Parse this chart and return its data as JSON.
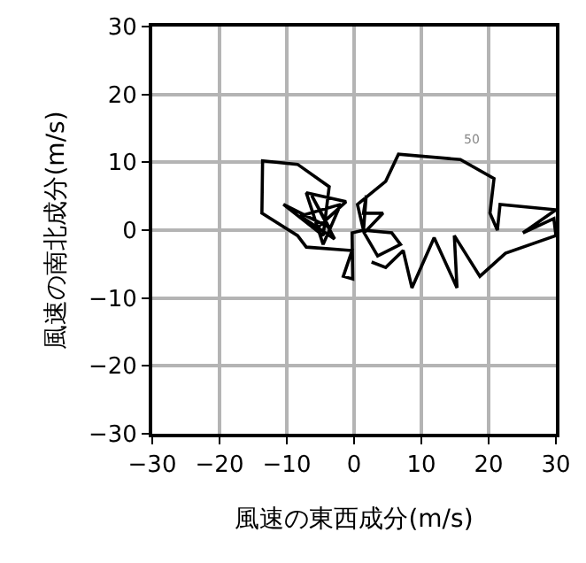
{
  "chart_data": {
    "type": "line",
    "xlabel": "風速の東西成分(m/s)",
    "ylabel": "風速の南北成分(m/s)",
    "xlim": [
      -30,
      30
    ],
    "ylim": [
      -30,
      30
    ],
    "xticks": [
      -30,
      -20,
      -10,
      0,
      10,
      20,
      30
    ],
    "yticks": [
      -30,
      -20,
      -10,
      0,
      10,
      20,
      30
    ],
    "grid": true,
    "marker": "none",
    "line_style": "solid",
    "annotations": [
      "50"
    ],
    "series": [
      {
        "color": "#000000",
        "x": [
          -5.4,
          -1.2,
          -7.1,
          -4.6,
          -2.0,
          -8.0,
          -2.9,
          -6.3,
          -3.7,
          -10.5,
          -4.6,
          -3.7,
          -8.4,
          -13.6,
          -13.7,
          -8.4,
          -7.1,
          -0.3,
          -1.6,
          -0.2,
          -0.3,
          1.4,
          1.8,
          1.4,
          4.3,
          1.5,
          3.5,
          6.9,
          5.6,
          1.4,
          0.5,
          4.7,
          6.6,
          15.8,
          20.8,
          20.2,
          21.3,
          21.7,
          30,
          25.1,
          29.7,
          30,
          22.5,
          18.7,
          14.9,
          15.3,
          11.9,
          8.6,
          7.3,
          4.7,
          2.6
        ],
        "values": [
          0.4,
          4.2,
          5.5,
          -2.1,
          3.8,
          2.1,
          -1.3,
          5.1,
          0.4,
          3.8,
          -0.8,
          6.4,
          9.7,
          10.2,
          2.5,
          -0.8,
          -2.5,
          -3.0,
          -6.8,
          -7.2,
          -0.4,
          0,
          5.1,
          2.5,
          2.5,
          -0.4,
          -3.8,
          -2.1,
          -0.4,
          0,
          3.8,
          7.2,
          11.2,
          10.4,
          7.6,
          2.5,
          0,
          3.8,
          3.0,
          -0.4,
          1.7,
          -0.8,
          -3.4,
          -6.8,
          -0.8,
          -8.5,
          -1.1,
          -8.5,
          -3.0,
          -5.5,
          -4.7
        ]
      }
    ]
  }
}
